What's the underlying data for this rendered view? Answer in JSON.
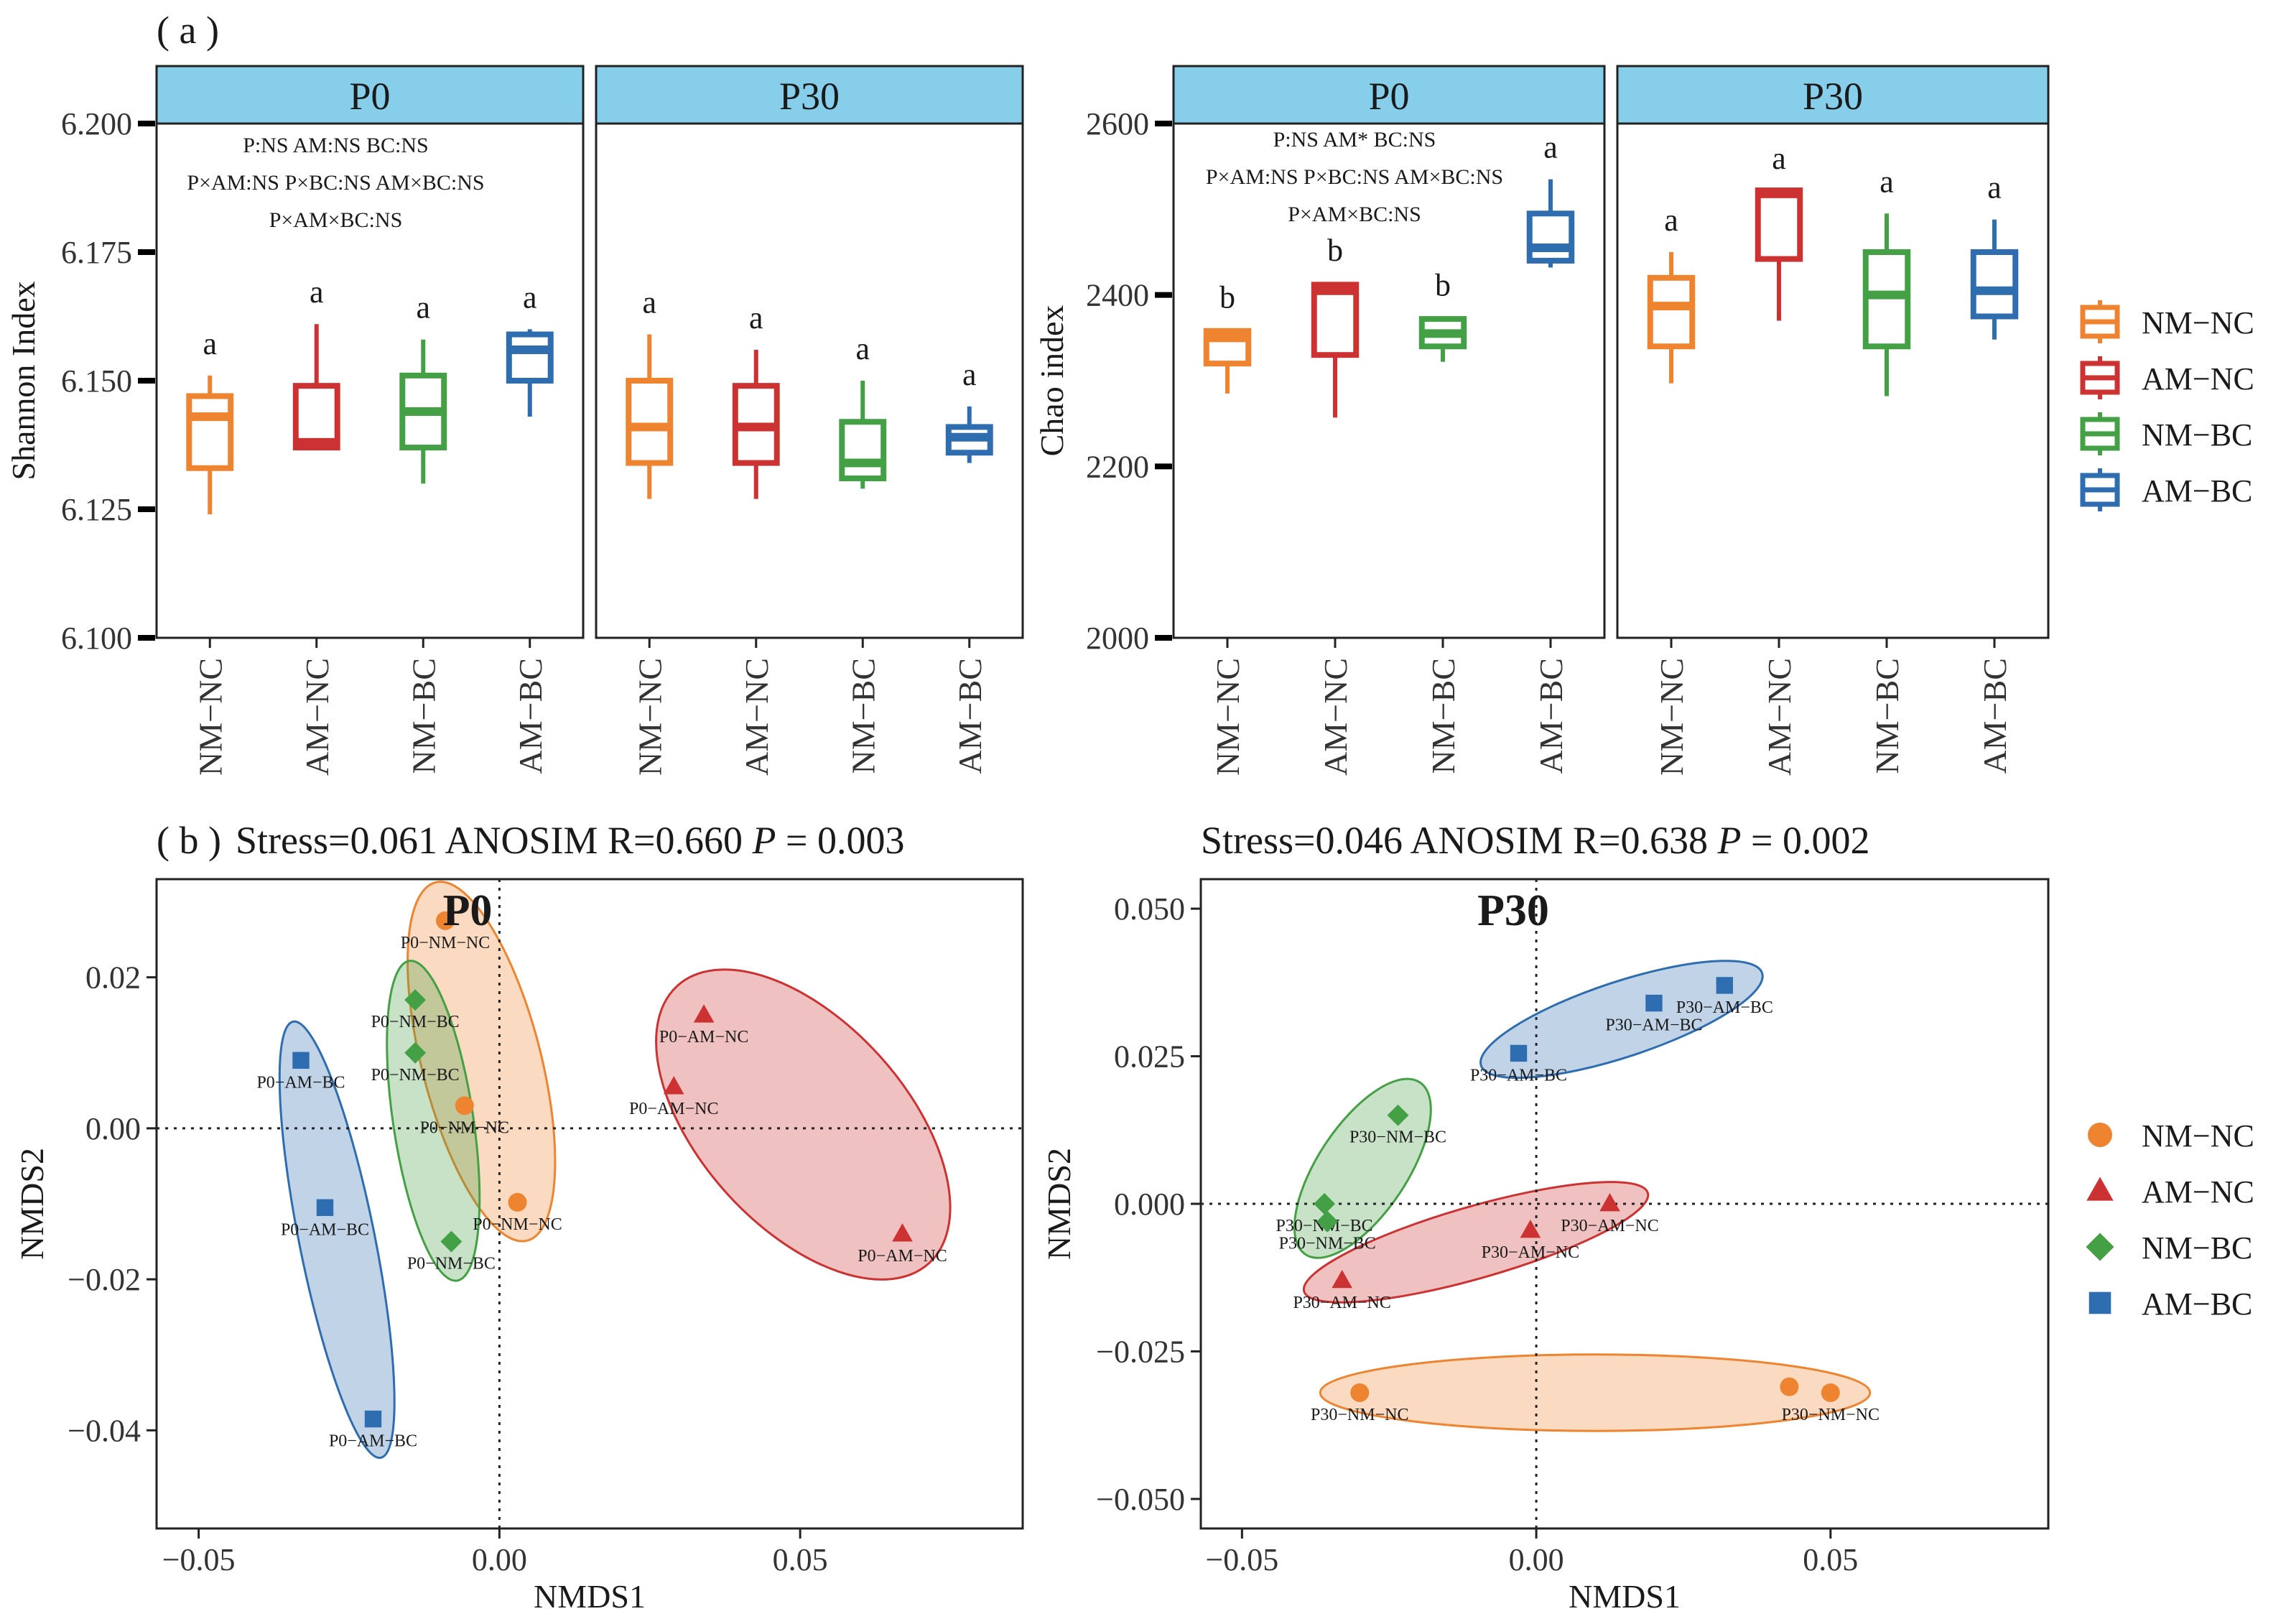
{
  "panel_labels": {
    "a": "( a )",
    "b": "( b )"
  },
  "chart_data": [
    {
      "type": "box",
      "id": "shannon",
      "ylabel": "Shannon Index",
      "ylim": [
        6.1,
        6.2
      ],
      "yticks": [
        "6.100",
        "6.125",
        "6.150",
        "6.175",
        "6.200"
      ],
      "facets": [
        {
          "name": "P0",
          "annotation": [
            "P:NS AM:NS BC:NS",
            "P×AM:NS P×BC:NS AM×BC:NS",
            "P×AM×BC:NS"
          ],
          "boxes": [
            {
              "group": "NM−NC",
              "min": 6.124,
              "q1": 6.133,
              "median": 6.143,
              "q3": 6.147,
              "max": 6.151,
              "letter": "a"
            },
            {
              "group": "AM−NC",
              "min": 6.137,
              "q1": 6.137,
              "median": 6.138,
              "q3": 6.149,
              "max": 6.161,
              "letter": "a"
            },
            {
              "group": "NM−BC",
              "min": 6.13,
              "q1": 6.137,
              "median": 6.144,
              "q3": 6.151,
              "max": 6.158,
              "letter": "a"
            },
            {
              "group": "AM−BC",
              "min": 6.143,
              "q1": 6.15,
              "median": 6.156,
              "q3": 6.159,
              "max": 6.16,
              "letter": "a"
            }
          ]
        },
        {
          "name": "P30",
          "annotation": [],
          "boxes": [
            {
              "group": "NM−NC",
              "min": 6.127,
              "q1": 6.134,
              "median": 6.141,
              "q3": 6.15,
              "max": 6.159,
              "letter": "a"
            },
            {
              "group": "AM−NC",
              "min": 6.127,
              "q1": 6.134,
              "median": 6.141,
              "q3": 6.149,
              "max": 6.156,
              "letter": "a"
            },
            {
              "group": "NM−BC",
              "min": 6.129,
              "q1": 6.131,
              "median": 6.134,
              "q3": 6.142,
              "max": 6.15,
              "letter": "a"
            },
            {
              "group": "AM−BC",
              "min": 6.134,
              "q1": 6.136,
              "median": 6.139,
              "q3": 6.141,
              "max": 6.145,
              "letter": "a"
            }
          ]
        }
      ]
    },
    {
      "type": "box",
      "id": "chao",
      "ylabel": "Chao index",
      "ylim": [
        2000,
        2600
      ],
      "yticks": [
        "2000",
        "2200",
        "2400",
        "2600"
      ],
      "facets": [
        {
          "name": "P0",
          "annotation": [
            "P:NS AM* BC:NS",
            "P×AM:NS P×BC:NS AM×BC:NS",
            "P×AM×BC:NS"
          ],
          "boxes": [
            {
              "group": "NM−NC",
              "min": 2285,
              "q1": 2320,
              "median": 2350,
              "q3": 2358,
              "max": 2360,
              "letter": "b"
            },
            {
              "group": "AM−NC",
              "min": 2257,
              "q1": 2330,
              "median": 2405,
              "q3": 2412,
              "max": 2415,
              "letter": "b"
            },
            {
              "group": "NM−BC",
              "min": 2322,
              "q1": 2340,
              "median": 2355,
              "q3": 2372,
              "max": 2374,
              "letter": "b"
            },
            {
              "group": "AM−BC",
              "min": 2432,
              "q1": 2440,
              "median": 2455,
              "q3": 2495,
              "max": 2535,
              "letter": "a"
            }
          ]
        },
        {
          "name": "P30",
          "annotation": [],
          "boxes": [
            {
              "group": "NM−NC",
              "min": 2297,
              "q1": 2340,
              "median": 2387,
              "q3": 2420,
              "max": 2450,
              "letter": "a"
            },
            {
              "group": "AM−NC",
              "min": 2370,
              "q1": 2442,
              "median": 2518,
              "q3": 2522,
              "max": 2522,
              "letter": "a"
            },
            {
              "group": "NM−BC",
              "min": 2282,
              "q1": 2340,
              "median": 2400,
              "q3": 2450,
              "max": 2495,
              "letter": "a"
            },
            {
              "group": "AM−BC",
              "min": 2348,
              "q1": 2375,
              "median": 2405,
              "q3": 2450,
              "max": 2488,
              "letter": "a"
            }
          ]
        }
      ]
    },
    {
      "type": "scatter",
      "id": "nmds_p0",
      "facet_title": "P0",
      "title": {
        "prefix": "Stress=0.061   ANOSIM R=0.660  ",
        "p": "P",
        "rest": " = 0.003"
      },
      "xlabel": "NMDS1",
      "ylabel": "NMDS2",
      "xlim": [
        -0.057,
        0.087
      ],
      "ylim": [
        -0.053,
        0.033
      ],
      "xticks": [
        {
          "value": -0.05,
          "label": "−0.05"
        },
        {
          "value": 0.0,
          "label": "0.00"
        },
        {
          "value": 0.05,
          "label": "0.05"
        }
      ],
      "yticks": [
        {
          "value": -0.04,
          "label": "−0.04"
        },
        {
          "value": -0.02,
          "label": "−0.02"
        },
        {
          "value": 0.0,
          "label": "0.00"
        },
        {
          "value": 0.02,
          "label": "0.02"
        }
      ],
      "points": [
        {
          "group": "NM−NC",
          "x": -0.009,
          "y": 0.0275,
          "label": "P0−NM−NC"
        },
        {
          "group": "NM−NC",
          "x": -0.0058,
          "y": 0.003,
          "label": "P0−NM−NC"
        },
        {
          "group": "NM−NC",
          "x": 0.003,
          "y": -0.0098,
          "label": "P0−NM−NC"
        },
        {
          "group": "AM−NC",
          "x": 0.034,
          "y": 0.015,
          "label": "P0−AM−NC"
        },
        {
          "group": "AM−NC",
          "x": 0.029,
          "y": 0.0055,
          "label": "P0−AM−NC"
        },
        {
          "group": "AM−NC",
          "x": 0.067,
          "y": -0.014,
          "label": "P0−AM−NC"
        },
        {
          "group": "NM−BC",
          "x": -0.014,
          "y": 0.017,
          "label": "P0−NM−BC"
        },
        {
          "group": "NM−BC",
          "x": -0.014,
          "y": 0.01,
          "label": "P0−NM−BC"
        },
        {
          "group": "NM−BC",
          "x": -0.008,
          "y": -0.015,
          "label": "P0−NM−BC"
        },
        {
          "group": "AM−BC",
          "x": -0.033,
          "y": 0.009,
          "label": "P0−AM−BC"
        },
        {
          "group": "AM−BC",
          "x": -0.029,
          "y": -0.0105,
          "label": "P0−AM−BC"
        },
        {
          "group": "AM−BC",
          "x": -0.021,
          "y": -0.0385,
          "label": "P0−AM−BC"
        }
      ]
    },
    {
      "type": "scatter",
      "id": "nmds_p30",
      "facet_title": "P30",
      "title": {
        "prefix": "Stress=0.046  ANOSIM R=0.638  ",
        "p": "P",
        "rest": " = 0.002"
      },
      "xlabel": "NMDS1",
      "ylabel": "NMDS2",
      "xlim": [
        -0.057,
        0.087
      ],
      "ylim": [
        -0.055,
        0.055
      ],
      "xticks": [
        {
          "value": -0.05,
          "label": "−0.05"
        },
        {
          "value": 0.0,
          "label": "0.00"
        },
        {
          "value": 0.05,
          "label": "0.05"
        }
      ],
      "yticks": [
        {
          "value": -0.05,
          "label": "−0.050"
        },
        {
          "value": -0.025,
          "label": "−0.025"
        },
        {
          "value": 0.0,
          "label": "0.000"
        },
        {
          "value": 0.025,
          "label": "0.025"
        },
        {
          "value": 0.05,
          "label": "0.050"
        }
      ],
      "points": [
        {
          "group": "NM−NC",
          "x": -0.03,
          "y": -0.032,
          "label": "P30−NM−NC"
        },
        {
          "group": "NM−NC",
          "x": 0.043,
          "y": -0.031,
          "label": ""
        },
        {
          "group": "NM−NC",
          "x": 0.05,
          "y": -0.032,
          "label": "P30−NM−NC"
        },
        {
          "group": "AM−NC",
          "x": -0.033,
          "y": -0.013,
          "label": "P30−AM−NC"
        },
        {
          "group": "AM−NC",
          "x": -0.001,
          "y": -0.0045,
          "label": "P30−AM−NC"
        },
        {
          "group": "AM−NC",
          "x": 0.0125,
          "y": 0.0,
          "label": "P30−AM−NC"
        },
        {
          "group": "NM−BC",
          "x": -0.0235,
          "y": 0.015,
          "label": "P30−NM−BC"
        },
        {
          "group": "NM−BC",
          "x": -0.036,
          "y": 0.0,
          "label": "P30−NM−BC"
        },
        {
          "group": "NM−BC",
          "x": -0.0355,
          "y": -0.003,
          "label": "P30−NM−BC"
        },
        {
          "group": "AM−BC",
          "x": -0.003,
          "y": 0.0255,
          "label": "P30−AM−BC"
        },
        {
          "group": "AM−BC",
          "x": 0.02,
          "y": 0.034,
          "label": "P30−AM−BC"
        },
        {
          "group": "AM−BC",
          "x": 0.032,
          "y": 0.037,
          "label": "P30−AM−BC"
        }
      ]
    }
  ],
  "groups": [
    "NM−NC",
    "AM−NC",
    "NM−BC",
    "AM−BC"
  ],
  "legend": {
    "box": [
      "NM−NC",
      "AM−NC",
      "NM−BC",
      "AM−BC"
    ],
    "scatter": [
      "NM−NC",
      "AM−NC",
      "NM−BC",
      "AM−BC"
    ]
  },
  "colors": {
    "NM−NC": "#ee8430",
    "AM−NC": "#cd3232",
    "NM−BC": "#44a044",
    "AM−BC": "#2e6db0",
    "strip": "#87ceeb"
  },
  "shapes": {
    "NM−NC": "circle",
    "AM−NC": "triangle",
    "NM−BC": "diamond",
    "AM−BC": "square"
  }
}
